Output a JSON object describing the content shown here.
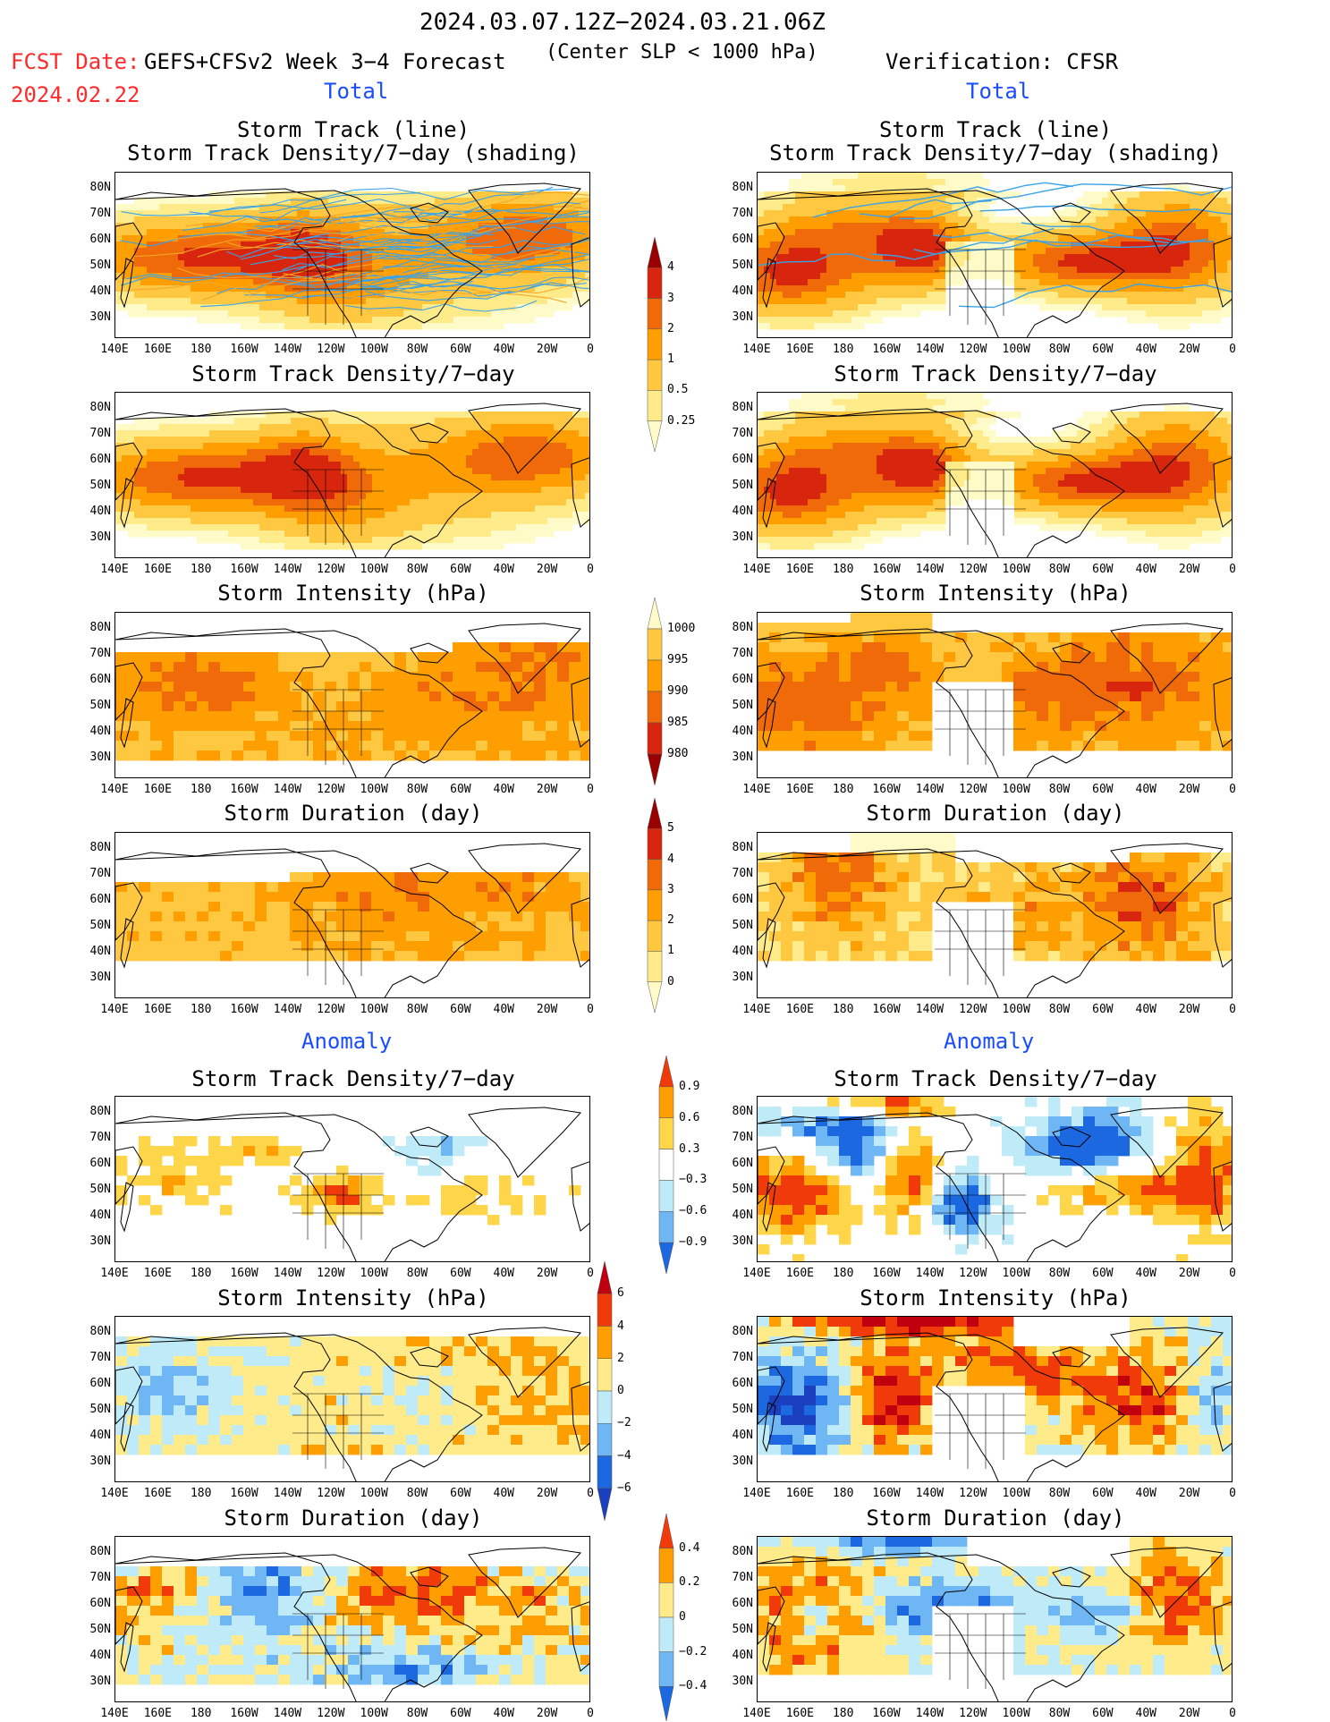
{
  "header": {
    "date_range": "2024.03.07.12Z−2024.03.21.06Z",
    "fcst_date_label": "FCST Date:",
    "fcst_date": "2024.02.22",
    "model": "GEFS+CFSv2 Week 3−4 Forecast",
    "criterion": "(Center SLP < 1000 hPa)",
    "verification": "Verification: CFSR"
  },
  "section_labels": {
    "total": "Total",
    "anomaly": "Anomaly"
  },
  "panel_titles": {
    "track_line": "Storm Track (line)",
    "track_line_sub": "Storm Track Density/7−day (shading)",
    "density": "Storm Track Density/7−day",
    "intensity": "Storm Intensity (hPa)",
    "duration": "Storm Duration (day)"
  },
  "axes": {
    "lat_ticks": [
      "80N",
      "70N",
      "60N",
      "50N",
      "40N",
      "30N"
    ],
    "lon_ticks": [
      "140E",
      "160E",
      "180",
      "160W",
      "140W",
      "120W",
      "100W",
      "80W",
      "60W",
      "40W",
      "20W",
      "0"
    ]
  },
  "colorbars": {
    "density": {
      "labels": [
        "4",
        "3",
        "2",
        "1",
        "0.5",
        "0.25"
      ],
      "colors": [
        "#9b0000",
        "#d8260e",
        "#f06a0a",
        "#ff9e00",
        "#ffc840",
        "#ffeb8a",
        "#fffbc8"
      ]
    },
    "intensity": {
      "labels": [
        "1000",
        "995",
        "990",
        "985",
        "980"
      ],
      "colors": [
        "#fffbc8",
        "#ffc840",
        "#ff9e00",
        "#f06a0a",
        "#d8260e",
        "#9b0000"
      ]
    },
    "duration": {
      "labels": [
        "5",
        "4",
        "3",
        "2",
        "1",
        "0"
      ],
      "colors": [
        "#9b0000",
        "#d8260e",
        "#f06a0a",
        "#ff9e00",
        "#ffc840",
        "#ffeb8a",
        "#fffbc8"
      ]
    },
    "density_anom": {
      "labels": [
        "0.9",
        "0.6",
        "0.3",
        "−0.3",
        "−0.6",
        "−0.9"
      ],
      "colors": [
        "#f03a0a",
        "#ff9e00",
        "#ffd64a",
        "#ffffff",
        "#bfeaf8",
        "#6fb6f5",
        "#1c68e0"
      ]
    },
    "intensity_anom": {
      "labels": [
        "6",
        "4",
        "2",
        "0",
        "−2",
        "−4",
        "−6"
      ],
      "colors": [
        "#c0000e",
        "#f03a0a",
        "#ff9e00",
        "#ffeb8a",
        "#bfeaf8",
        "#6fb6f5",
        "#1c68e0",
        "#1a40c0"
      ]
    },
    "duration_anom": {
      "labels": [
        "0.4",
        "0.2",
        "0",
        "−0.2",
        "−0.4"
      ],
      "colors": [
        "#f03a0a",
        "#ff9e00",
        "#ffeb8a",
        "#bfeaf8",
        "#6fb6f5",
        "#1c68e0"
      ]
    }
  },
  "chart_data": [
    {
      "type": "heatmap",
      "title": "Storm Track (line) / Storm Track Density/7−day (shading)",
      "source": "GEFS+CFSv2 Week 3−4 Forecast",
      "section": "Total",
      "lon_range": [
        "140E",
        "0"
      ],
      "lat_range": [
        "25N",
        "85N"
      ]
    },
    {
      "type": "heatmap",
      "title": "Storm Track (line) / Storm Track Density/7−day (shading)",
      "source": "Verification: CFSR",
      "section": "Total",
      "lon_range": [
        "140E",
        "0"
      ],
      "lat_range": [
        "25N",
        "85N"
      ]
    },
    {
      "type": "heatmap",
      "title": "Storm Track Density/7−day",
      "source": "GEFS+CFSv2 Week 3−4 Forecast",
      "section": "Total",
      "colorbar": [
        0.25,
        0.5,
        1,
        2,
        3,
        4
      ]
    },
    {
      "type": "heatmap",
      "title": "Storm Track Density/7−day",
      "source": "Verification: CFSR",
      "section": "Total",
      "colorbar": [
        0.25,
        0.5,
        1,
        2,
        3,
        4
      ]
    },
    {
      "type": "heatmap",
      "title": "Storm Intensity (hPa)",
      "source": "GEFS+CFSv2 Week 3−4 Forecast",
      "section": "Total",
      "colorbar": [
        980,
        985,
        990,
        995,
        1000
      ]
    },
    {
      "type": "heatmap",
      "title": "Storm Intensity (hPa)",
      "source": "Verification: CFSR",
      "section": "Total",
      "colorbar": [
        980,
        985,
        990,
        995,
        1000
      ]
    },
    {
      "type": "heatmap",
      "title": "Storm Duration (day)",
      "source": "GEFS+CFSv2 Week 3−4 Forecast",
      "section": "Total",
      "colorbar": [
        0,
        1,
        2,
        3,
        4,
        5
      ]
    },
    {
      "type": "heatmap",
      "title": "Storm Duration (day)",
      "source": "Verification: CFSR",
      "section": "Total",
      "colorbar": [
        0,
        1,
        2,
        3,
        4,
        5
      ]
    },
    {
      "type": "heatmap",
      "title": "Storm Track Density/7−day",
      "source": "GEFS+CFSv2 Week 3−4 Forecast",
      "section": "Anomaly",
      "colorbar": [
        -0.9,
        -0.6,
        -0.3,
        0.3,
        0.6,
        0.9
      ]
    },
    {
      "type": "heatmap",
      "title": "Storm Track Density/7−day",
      "source": "Verification: CFSR",
      "section": "Anomaly",
      "colorbar": [
        -0.9,
        -0.6,
        -0.3,
        0.3,
        0.6,
        0.9
      ]
    },
    {
      "type": "heatmap",
      "title": "Storm Intensity (hPa)",
      "source": "GEFS+CFSv2 Week 3−4 Forecast",
      "section": "Anomaly",
      "colorbar": [
        -6,
        -4,
        -2,
        0,
        2,
        4,
        6
      ]
    },
    {
      "type": "heatmap",
      "title": "Storm Intensity (hPa)",
      "source": "Verification: CFSR",
      "section": "Anomaly",
      "colorbar": [
        -6,
        -4,
        -2,
        0,
        2,
        4,
        6
      ]
    },
    {
      "type": "heatmap",
      "title": "Storm Duration (day)",
      "source": "GEFS+CFSv2 Week 3−4 Forecast",
      "section": "Anomaly",
      "colorbar": [
        -0.4,
        -0.2,
        0,
        0.2,
        0.4
      ]
    },
    {
      "type": "heatmap",
      "title": "Storm Duration (day)",
      "source": "Verification: CFSR",
      "section": "Anomaly",
      "colorbar": [
        -0.4,
        -0.2,
        0,
        0.2,
        0.4
      ]
    }
  ]
}
